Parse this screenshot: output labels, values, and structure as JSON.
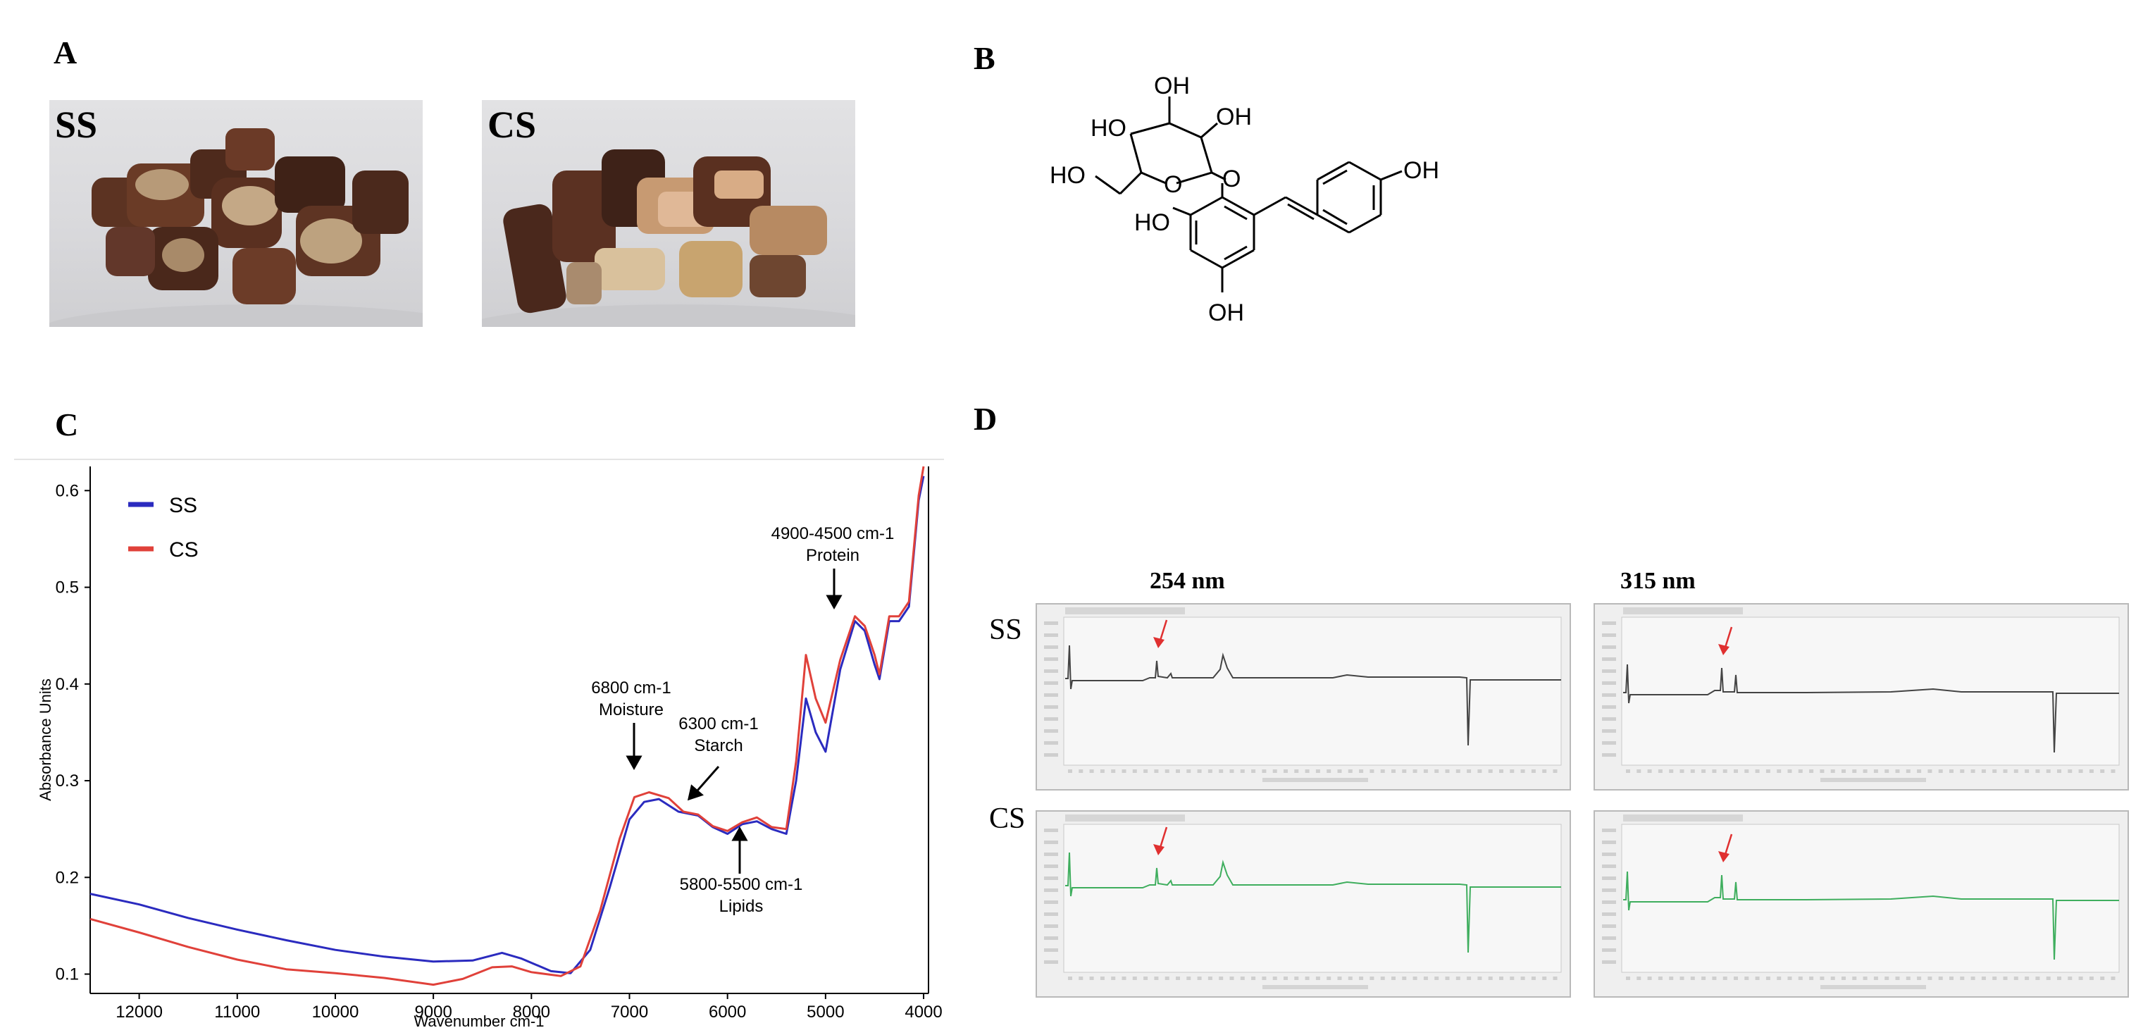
{
  "panels": {
    "a": {
      "label": "A",
      "photos": [
        {
          "tag": "SS"
        },
        {
          "tag": "CS"
        }
      ]
    },
    "b": {
      "label": "B",
      "structure_labels": [
        "OH",
        "HO",
        "OH",
        "HO",
        "O",
        "O",
        "OH",
        "HO",
        "OH"
      ]
    },
    "c": {
      "label": "C"
    },
    "d": {
      "label": "D",
      "wavelengths": [
        "254 nm",
        "315 nm"
      ],
      "sample_rows": [
        "SS",
        "CS"
      ]
    }
  },
  "colors": {
    "ss_line": "#2b2bbf",
    "cs_line": "#e0413a",
    "chromo_ss": "#444444",
    "chromo_cs": "#3fae5e",
    "arrow_red": "#e03030"
  },
  "chart_data": {
    "type": "line",
    "xlabel": "Wavenumber cm-1",
    "ylabel": "Absorbance Units",
    "xlim": [
      12500,
      3950
    ],
    "ylim": [
      0.08,
      0.625
    ],
    "xticks": [
      12000,
      11000,
      10000,
      9000,
      8000,
      7000,
      6000,
      5000,
      4000
    ],
    "yticks": [
      0.1,
      0.2,
      0.3,
      0.4,
      0.5,
      0.6
    ],
    "legend_position": "top-left",
    "series": [
      {
        "name": "SS",
        "color": "#2b2bbf",
        "points": [
          [
            12500,
            0.183
          ],
          [
            12000,
            0.172
          ],
          [
            11500,
            0.158
          ],
          [
            11000,
            0.146
          ],
          [
            10500,
            0.135
          ],
          [
            10000,
            0.125
          ],
          [
            9500,
            0.118
          ],
          [
            9000,
            0.113
          ],
          [
            8600,
            0.114
          ],
          [
            8300,
            0.122
          ],
          [
            8100,
            0.116
          ],
          [
            7800,
            0.103
          ],
          [
            7600,
            0.101
          ],
          [
            7400,
            0.125
          ],
          [
            7200,
            0.19
          ],
          [
            7000,
            0.26
          ],
          [
            6850,
            0.278
          ],
          [
            6700,
            0.281
          ],
          [
            6500,
            0.268
          ],
          [
            6300,
            0.264
          ],
          [
            6150,
            0.252
          ],
          [
            6000,
            0.245
          ],
          [
            5850,
            0.255
          ],
          [
            5700,
            0.258
          ],
          [
            5550,
            0.25
          ],
          [
            5400,
            0.245
          ],
          [
            5300,
            0.3
          ],
          [
            5200,
            0.385
          ],
          [
            5100,
            0.35
          ],
          [
            5000,
            0.33
          ],
          [
            4850,
            0.415
          ],
          [
            4700,
            0.465
          ],
          [
            4600,
            0.455
          ],
          [
            4500,
            0.42
          ],
          [
            4450,
            0.405
          ],
          [
            4350,
            0.465
          ],
          [
            4250,
            0.465
          ],
          [
            4150,
            0.48
          ],
          [
            4050,
            0.59
          ],
          [
            4000,
            0.615
          ]
        ]
      },
      {
        "name": "CS",
        "color": "#e0413a",
        "points": [
          [
            12500,
            0.157
          ],
          [
            12000,
            0.143
          ],
          [
            11500,
            0.128
          ],
          [
            11000,
            0.115
          ],
          [
            10500,
            0.105
          ],
          [
            10000,
            0.101
          ],
          [
            9500,
            0.096
          ],
          [
            9000,
            0.089
          ],
          [
            8700,
            0.095
          ],
          [
            8400,
            0.107
          ],
          [
            8200,
            0.108
          ],
          [
            8000,
            0.102
          ],
          [
            7700,
            0.098
          ],
          [
            7500,
            0.108
          ],
          [
            7300,
            0.165
          ],
          [
            7100,
            0.24
          ],
          [
            6950,
            0.283
          ],
          [
            6800,
            0.288
          ],
          [
            6600,
            0.282
          ],
          [
            6450,
            0.268
          ],
          [
            6300,
            0.265
          ],
          [
            6150,
            0.253
          ],
          [
            6000,
            0.248
          ],
          [
            5850,
            0.257
          ],
          [
            5700,
            0.262
          ],
          [
            5550,
            0.252
          ],
          [
            5400,
            0.25
          ],
          [
            5300,
            0.32
          ],
          [
            5200,
            0.43
          ],
          [
            5100,
            0.385
          ],
          [
            5000,
            0.36
          ],
          [
            4850,
            0.425
          ],
          [
            4700,
            0.47
          ],
          [
            4600,
            0.46
          ],
          [
            4500,
            0.43
          ],
          [
            4450,
            0.41
          ],
          [
            4350,
            0.47
          ],
          [
            4250,
            0.47
          ],
          [
            4150,
            0.485
          ],
          [
            4050,
            0.595
          ],
          [
            4000,
            0.625
          ]
        ]
      }
    ],
    "annotations": [
      {
        "text": "4900-4500 cm-1",
        "sub": "Protein"
      },
      {
        "text": "6800 cm-1",
        "sub": "Moisture"
      },
      {
        "text": "6300 cm-1",
        "sub": "Starch"
      },
      {
        "text": "5800-5500 cm-1",
        "sub": "Lipids"
      }
    ]
  }
}
